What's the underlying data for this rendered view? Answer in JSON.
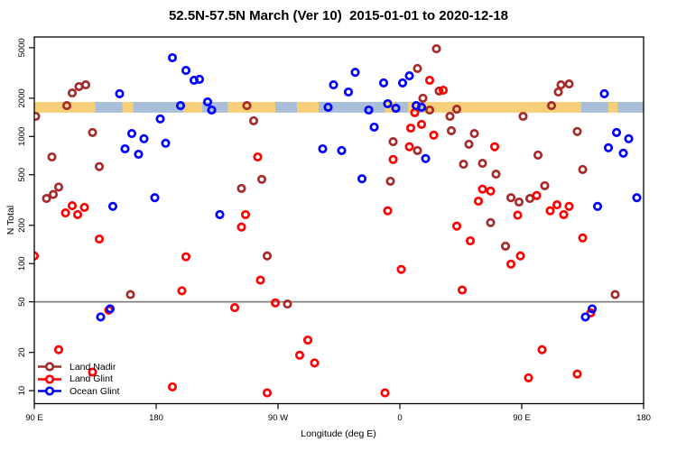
{
  "chart_data": {
    "type": "scatter",
    "title": "52.5N-57.5N March (Ver 10)  2015-01-01 to 2020-12-18",
    "xlabel": "Longitude (deg E)",
    "ylabel": "N Total",
    "x_axis": {
      "min": 90,
      "max": 540,
      "ticks": [
        {
          "value": 90,
          "label": "90 E"
        },
        {
          "value": 180,
          "label": "180"
        },
        {
          "value": 270,
          "label": "90 W"
        },
        {
          "value": 360,
          "label": "0"
        },
        {
          "value": 450,
          "label": "90 E"
        },
        {
          "value": 540,
          "label": "180"
        }
      ]
    },
    "y_axis": {
      "scale": "log",
      "min": 7.9,
      "max": 6070,
      "tick_values": [
        10,
        20,
        50,
        100,
        200,
        500,
        1000,
        2000,
        5000
      ],
      "tick_labels": [
        "10",
        "20",
        "50",
        "100",
        "200",
        "500",
        "1000",
        "2000",
        "5000"
      ]
    },
    "reference_line": {
      "value": 50,
      "color": "#808080"
    },
    "latitude_band": {
      "n_top": 1870,
      "n_bottom": 1540,
      "land_color": "#F7CF78",
      "ocean_color": "#A9BED9",
      "segments": [
        {
          "from": 90,
          "to": 135,
          "surface": "land"
        },
        {
          "from": 135,
          "to": 155,
          "surface": "ocean"
        },
        {
          "from": 155,
          "to": 163,
          "surface": "land"
        },
        {
          "from": 163,
          "to": 200,
          "surface": "ocean"
        },
        {
          "from": 200,
          "to": 214,
          "surface": "land"
        },
        {
          "from": 214,
          "to": 233,
          "surface": "ocean"
        },
        {
          "from": 233,
          "to": 268,
          "surface": "land"
        },
        {
          "from": 268,
          "to": 284,
          "surface": "ocean"
        },
        {
          "from": 284,
          "to": 300,
          "surface": "land"
        },
        {
          "from": 300,
          "to": 349,
          "surface": "ocean"
        },
        {
          "from": 349,
          "to": 356,
          "surface": "land"
        },
        {
          "from": 356,
          "to": 366,
          "surface": "ocean"
        },
        {
          "from": 366,
          "to": 373,
          "surface": "land"
        },
        {
          "from": 373,
          "to": 377,
          "surface": "ocean"
        },
        {
          "from": 377,
          "to": 494,
          "surface": "land"
        },
        {
          "from": 494,
          "to": 514,
          "surface": "ocean"
        },
        {
          "from": 514,
          "to": 521,
          "surface": "land"
        },
        {
          "from": 521,
          "to": 540,
          "surface": "ocean"
        }
      ]
    },
    "series": [
      {
        "name": "Land Nadir",
        "color": "#A52A2A",
        "points": [
          [
            128,
            2550
          ],
          [
            123,
            2470
          ],
          [
            118,
            2200
          ],
          [
            114,
            1750
          ],
          [
            91,
            1440
          ],
          [
            133,
            1075
          ],
          [
            103,
            690
          ],
          [
            138,
            580
          ],
          [
            108,
            400
          ],
          [
            104,
            350
          ],
          [
            99,
            325
          ],
          [
            387,
            4900
          ],
          [
            373,
            3430
          ],
          [
            389,
            2280
          ],
          [
            377,
            2000
          ],
          [
            382,
            1615
          ],
          [
            247,
            1750
          ],
          [
            252,
            1330
          ],
          [
            355,
            910
          ],
          [
            373,
            775
          ],
          [
            258,
            460
          ],
          [
            243,
            390
          ],
          [
            353,
            445
          ],
          [
            262,
            115
          ],
          [
            402,
            1640
          ],
          [
            479,
            2550
          ],
          [
            485,
            2590
          ],
          [
            477,
            2240
          ],
          [
            472,
            1750
          ],
          [
            397,
            1440
          ],
          [
            451,
            1440
          ],
          [
            398,
            1110
          ],
          [
            415,
            1055
          ],
          [
            411,
            870
          ],
          [
            491,
            1095
          ],
          [
            462,
            715
          ],
          [
            407,
            605
          ],
          [
            421,
            615
          ],
          [
            431,
            505
          ],
          [
            495,
            550
          ],
          [
            467,
            410
          ],
          [
            442,
            330
          ],
          [
            448,
            305
          ],
          [
            456,
            325
          ],
          [
            427,
            210
          ],
          [
            438,
            137
          ],
          [
            161,
            57
          ],
          [
            277,
            48
          ],
          [
            519,
            57
          ]
        ]
      },
      {
        "name": "Land Glint",
        "color": "#FF0000",
        "points": [
          [
            118,
            285
          ],
          [
            113,
            250
          ],
          [
            127,
            277
          ],
          [
            122,
            243
          ],
          [
            138,
            156
          ],
          [
            90,
            115
          ],
          [
            202,
            113
          ],
          [
            199,
            61
          ],
          [
            382,
            2770
          ],
          [
            371,
            1540
          ],
          [
            376,
            1245
          ],
          [
            368,
            1165
          ],
          [
            385,
            1025
          ],
          [
            367,
            830
          ],
          [
            255,
            690
          ],
          [
            355,
            660
          ],
          [
            246,
            243
          ],
          [
            243,
            194
          ],
          [
            351,
            260
          ],
          [
            257,
            74
          ],
          [
            361,
            90
          ],
          [
            392,
            2315
          ],
          [
            430,
            830
          ],
          [
            421,
            385
          ],
          [
            427,
            372
          ],
          [
            418,
            310
          ],
          [
            461,
            343
          ],
          [
            471,
            260
          ],
          [
            476,
            290
          ],
          [
            481,
            243
          ],
          [
            485,
            282
          ],
          [
            447,
            240
          ],
          [
            402,
            197
          ],
          [
            412,
            151
          ],
          [
            449,
            115
          ],
          [
            442,
            99
          ],
          [
            495,
            159
          ],
          [
            145,
            43
          ],
          [
            108,
            21
          ],
          [
            133,
            14
          ],
          [
            192,
            10.7
          ],
          [
            238,
            45
          ],
          [
            268,
            49
          ],
          [
            292,
            25
          ],
          [
            286,
            19
          ],
          [
            297,
            16.5
          ],
          [
            262,
            9.6
          ],
          [
            349,
            9.6
          ],
          [
            406,
            62
          ],
          [
            501,
            41
          ],
          [
            465,
            21
          ],
          [
            491,
            13.5
          ],
          [
            455,
            12.6
          ]
        ]
      },
      {
        "name": "Ocean Glint",
        "color": "#0000FF",
        "points": [
          [
            192,
            4170
          ],
          [
            202,
            3310
          ],
          [
            208,
            2770
          ],
          [
            212,
            2820
          ],
          [
            153,
            2170
          ],
          [
            198,
            1750
          ],
          [
            218,
            1870
          ],
          [
            221,
            1615
          ],
          [
            183,
            1375
          ],
          [
            162,
            1055
          ],
          [
            171,
            960
          ],
          [
            157,
            800
          ],
          [
            187,
            885
          ],
          [
            167,
            725
          ],
          [
            327,
            3200
          ],
          [
            311,
            2550
          ],
          [
            348,
            2640
          ],
          [
            362,
            2640
          ],
          [
            367,
            3000
          ],
          [
            322,
            2240
          ],
          [
            307,
            1700
          ],
          [
            337,
            1615
          ],
          [
            351,
            1810
          ],
          [
            357,
            1670
          ],
          [
            372,
            1750
          ],
          [
            376,
            1700
          ],
          [
            341,
            1185
          ],
          [
            303,
            800
          ],
          [
            317,
            775
          ],
          [
            379,
            670
          ],
          [
            332,
            465
          ],
          [
            511,
            2170
          ],
          [
            520,
            1075
          ],
          [
            529,
            960
          ],
          [
            514,
            815
          ],
          [
            525,
            740
          ],
          [
            535,
            330
          ],
          [
            506,
            282
          ],
          [
            148,
            282
          ],
          [
            179,
            330
          ],
          [
            227,
            243
          ],
          [
            139,
            38
          ],
          [
            146,
            44
          ],
          [
            502,
            44
          ],
          [
            497,
            38
          ]
        ]
      }
    ],
    "legend_position": "bottom-left"
  }
}
